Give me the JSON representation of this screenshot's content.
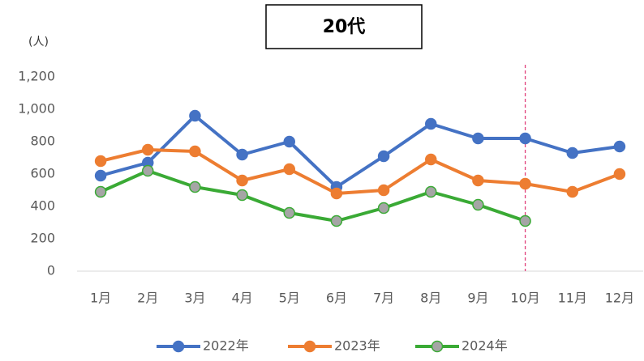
{
  "chart_data": {
    "type": "line",
    "title": "20代",
    "unit_label": "(人)",
    "categories": [
      "1月",
      "2月",
      "3月",
      "4月",
      "5月",
      "6月",
      "7月",
      "8月",
      "9月",
      "10月",
      "11月",
      "12月"
    ],
    "series": [
      {
        "name": "2022年",
        "color": "#4472c4",
        "marker_fill": "#4472c4",
        "values": [
          590,
          670,
          960,
          720,
          800,
          520,
          710,
          910,
          820,
          820,
          730,
          770
        ]
      },
      {
        "name": "2023年",
        "color": "#ed7d31",
        "marker_fill": "#ed7d31",
        "values": [
          680,
          750,
          740,
          560,
          630,
          480,
          500,
          690,
          560,
          540,
          490,
          600
        ]
      },
      {
        "name": "2024年",
        "color": "#3aaa35",
        "marker_fill": "#a5a5a5",
        "values": [
          490,
          620,
          520,
          470,
          360,
          310,
          390,
          490,
          410,
          310,
          null,
          null
        ]
      }
    ],
    "ylim": [
      0,
      1200
    ],
    "yticks": [
      0,
      200,
      400,
      600,
      800,
      {
        "value": 1000,
        "label": "1,000"
      },
      {
        "value": 1200,
        "label": "1,200"
      }
    ],
    "grid": false,
    "legend": "bottom",
    "vline": {
      "x": "10月",
      "color": "#e0407a"
    }
  }
}
